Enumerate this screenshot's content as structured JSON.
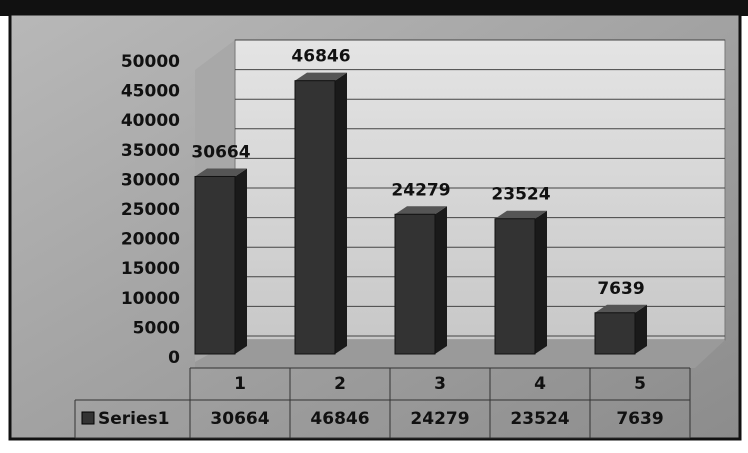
{
  "chart_data": {
    "type": "bar",
    "categories": [
      "1",
      "2",
      "3",
      "4",
      "5"
    ],
    "series": [
      {
        "name": "Series1",
        "color": "#333333",
        "values": [
          30664,
          46846,
          24279,
          23524,
          7639
        ]
      }
    ],
    "ylim": [
      0,
      50000
    ],
    "yticks": [
      0,
      5000,
      10000,
      15000,
      20000,
      25000,
      30000,
      35000,
      40000,
      45000,
      50000
    ],
    "grid": true,
    "data_table": true
  }
}
